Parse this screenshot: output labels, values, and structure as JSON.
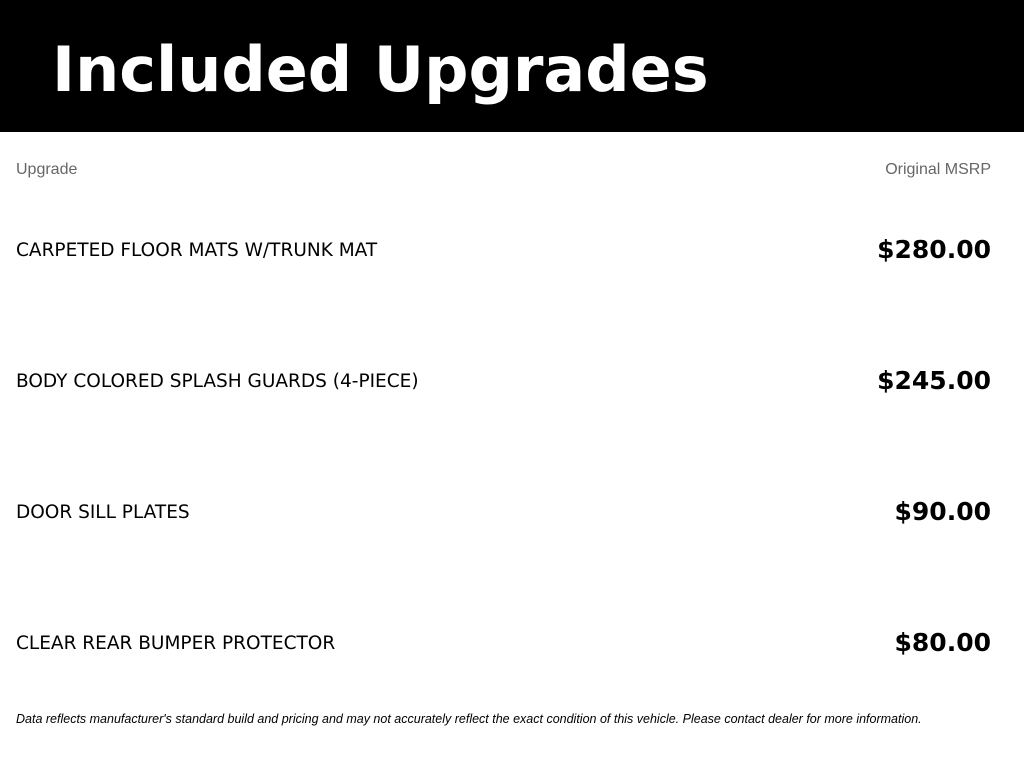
{
  "header": {
    "title": "Included Upgrades"
  },
  "columns": {
    "name": "Upgrade",
    "price": "Original MSRP"
  },
  "rows": [
    {
      "name": "CARPETED FLOOR MATS W/TRUNK MAT",
      "price": "$280.00"
    },
    {
      "name": "BODY COLORED SPLASH GUARDS (4-PIECE)",
      "price": "$245.00"
    },
    {
      "name": "DOOR SILL PLATES",
      "price": "$90.00"
    },
    {
      "name": "CLEAR REAR BUMPER PROTECTOR",
      "price": "$80.00"
    }
  ],
  "footnote": "Data reflects manufacturer's standard build and pricing and may not accurately reflect the exact condition of this vehicle. Please contact dealer for more information."
}
